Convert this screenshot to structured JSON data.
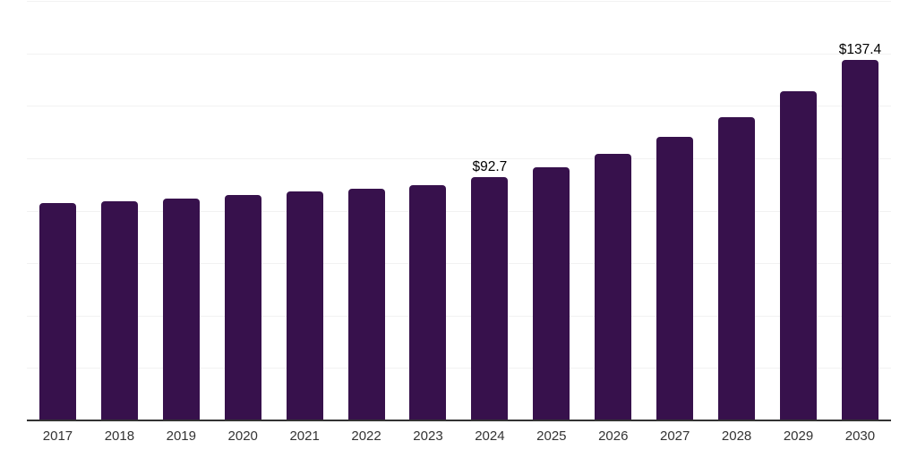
{
  "chart_data": {
    "type": "bar",
    "title": "",
    "xlabel": "",
    "ylabel": "",
    "categories": [
      "2017",
      "2018",
      "2019",
      "2020",
      "2021",
      "2022",
      "2023",
      "2024",
      "2025",
      "2026",
      "2027",
      "2028",
      "2029",
      "2030"
    ],
    "values": [
      83.0,
      83.7,
      84.6,
      86.1,
      87.3,
      88.4,
      89.6,
      92.7,
      96.5,
      101.8,
      108.1,
      115.7,
      125.7,
      137.4
    ],
    "data_labels": [
      null,
      null,
      null,
      null,
      null,
      null,
      null,
      "$92.7",
      null,
      null,
      null,
      null,
      null,
      "$137.4"
    ],
    "ylim": [
      0,
      160
    ],
    "gridline_step": 20,
    "grid": "horizontal-only",
    "legend_position": "none",
    "colors": {
      "bar": "#37114c",
      "gridline": "#f2f2f2",
      "axis_line": "#333333",
      "value_label": "#000000",
      "tick_label": "#333333",
      "background": "#ffffff"
    }
  }
}
